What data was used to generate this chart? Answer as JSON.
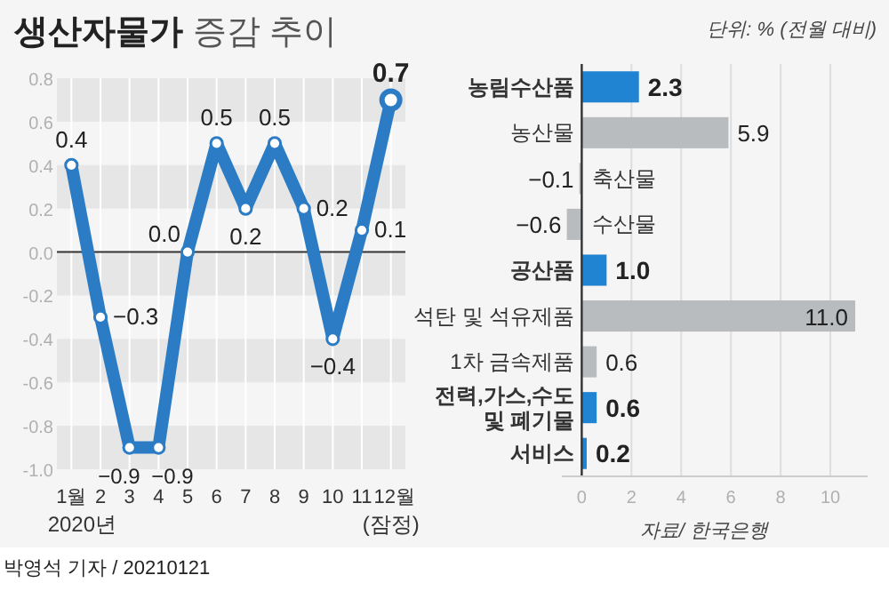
{
  "chart_data": [
    {
      "type": "line",
      "title": "생산자물가 증감 추이",
      "categories": [
        "1월",
        "2",
        "3",
        "4",
        "5",
        "6",
        "7",
        "8",
        "9",
        "10",
        "11",
        "12월"
      ],
      "series": [
        {
          "color": "#2b7cc4",
          "values": [
            0.4,
            -0.3,
            -0.9,
            -0.9,
            0.0,
            0.5,
            0.2,
            0.5,
            0.2,
            -0.4,
            0.1,
            0.7
          ],
          "value_labels": [
            "0.4",
            "−0.3",
            "−0.9",
            "−0.9",
            "0.0",
            "0.5",
            "0.2",
            "0.5",
            "0.2",
            "−0.4",
            "0.1",
            "0.7"
          ]
        }
      ],
      "ylim": [
        -1.0,
        0.8
      ],
      "yticks": [
        {
          "value": -1.0,
          "label": "-1.0"
        },
        -0.8,
        -0.6,
        -0.4,
        -0.2,
        {
          "value": 0,
          "label": "0.0"
        },
        0.2,
        0.4,
        0.6,
        0.8
      ],
      "marker": "circle",
      "line_style": "solid",
      "grid": "x",
      "ref_lines": [
        {
          "axis": "y",
          "value": 0,
          "label": null,
          "color": "#333333"
        }
      ],
      "bands": [
        {
          "axis": "y",
          "from": 0.6,
          "to": 0.8,
          "label": null,
          "color": "#e6e6e6"
        },
        {
          "axis": "y",
          "from": 0.2,
          "to": 0.4,
          "label": null,
          "color": "#e6e6e6"
        },
        {
          "axis": "y",
          "from": -0.2,
          "to": 0.0,
          "label": null,
          "color": "#e6e6e6"
        },
        {
          "axis": "y",
          "from": -0.6,
          "to": -0.4,
          "label": null,
          "color": "#e6e6e6"
        },
        {
          "axis": "y",
          "from": -1.0,
          "to": -0.8,
          "label": null,
          "color": "#e6e6e6"
        }
      ],
      "annotations": [
        "2020년",
        "(잠정)",
        "박영석 기자 / 20210121"
      ]
    },
    {
      "type": "bar",
      "orientation": "horizontal",
      "categories": [
        "농림수산품",
        "농산물",
        "축산물",
        "수산물",
        "공산품",
        "석탄 및 석유제품",
        "1차 금속제품",
        "전력,가스,수도 및 폐기물",
        "서비스"
      ],
      "values": [
        2.3,
        5.9,
        -0.1,
        -0.6,
        1.0,
        11.0,
        0.6,
        0.6,
        0.2
      ],
      "value_labels": [
        "2.3",
        "5.9",
        "−0.1",
        "−0.6",
        "1.0",
        "11.0",
        "0.6",
        "0.6",
        "0.2"
      ],
      "colors": [
        "#2084d2",
        "#b9bcbf",
        "#b9bcbf",
        "#b9bcbf",
        "#2084d2",
        "#b9bcbf",
        "#b9bcbf",
        "#2084d2",
        "#2084d2"
      ],
      "xlim": [
        -0.8,
        11.5
      ],
      "xticks": [
        0,
        2,
        4,
        6,
        8,
        10
      ],
      "grid": "x",
      "annotations": [
        "단위: % (전월 대비)",
        "자료/ 한국은행"
      ]
    }
  ]
}
